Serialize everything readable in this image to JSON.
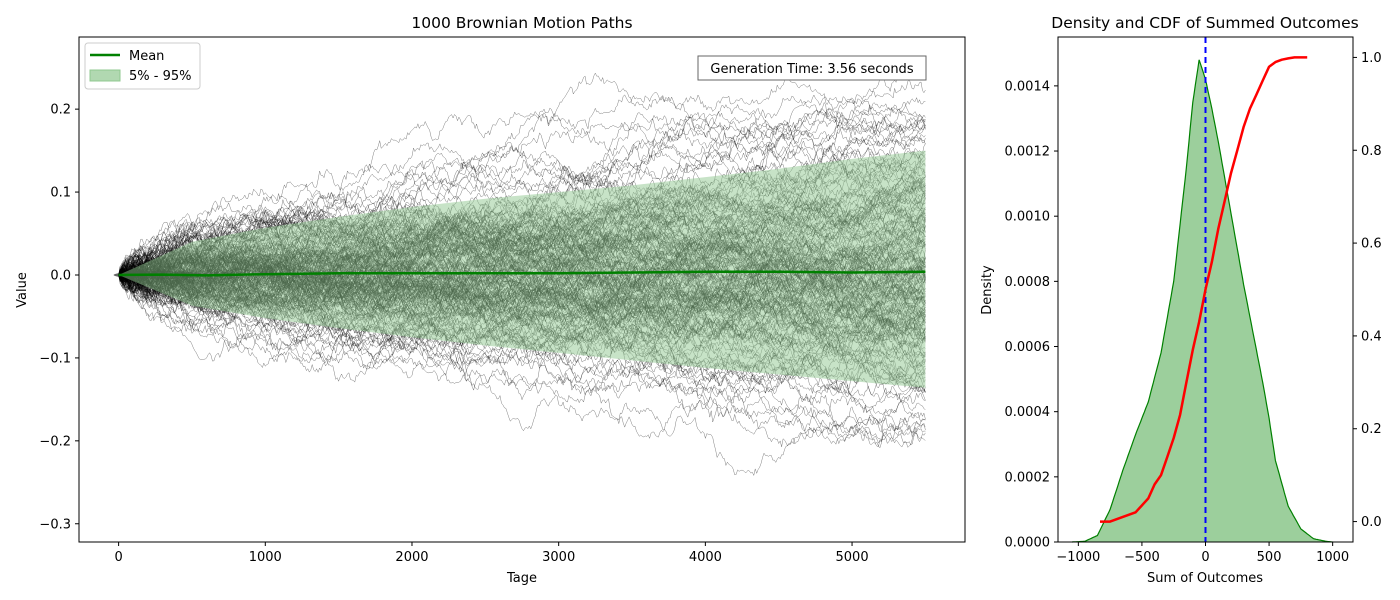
{
  "chart_data": [
    {
      "type": "line",
      "title": "1000 Brownian Motion Paths",
      "xlabel": "Tage",
      "ylabel": "Value",
      "xlim": [
        -270,
        5770
      ],
      "ylim": [
        -0.322,
        0.287
      ],
      "xticks": [
        0,
        1000,
        2000,
        3000,
        4000,
        5000
      ],
      "xtick_labels": [
        "0",
        "1000",
        "2000",
        "3000",
        "4000",
        "5000"
      ],
      "yticks": [
        -0.3,
        -0.2,
        -0.1,
        0.0,
        0.1,
        0.2
      ],
      "ytick_labels": [
        "−0.3",
        "−0.2",
        "−0.1",
        "0.0",
        "0.1",
        "0.2"
      ],
      "n_paths": 1000,
      "n_steps": 5500,
      "path_color": "#000000",
      "legend_position": "upper-left",
      "legend": [
        {
          "label": "Mean",
          "color": "#008000",
          "kind": "line"
        },
        {
          "label": "5% - 95%",
          "color": "#90c890",
          "kind": "patch"
        }
      ],
      "annotation": "Generation Time: 3.56 seconds",
      "series": [
        {
          "name": "Mean",
          "color": "#008000",
          "x": [
            0,
            300,
            600,
            1000,
            1500,
            2000,
            2500,
            3000,
            3500,
            4000,
            4500,
            5000,
            5500
          ],
          "y": [
            0.0,
            0.0005,
            -0.0005,
            0.001,
            0.002,
            0.002,
            0.002,
            0.002,
            0.003,
            0.004,
            0.004,
            0.003,
            0.004
          ]
        },
        {
          "name": "5% - 95%",
          "color": "#90c890",
          "x": [
            0,
            500,
            1000,
            1500,
            2000,
            2500,
            3000,
            3500,
            4000,
            4500,
            5000,
            5500
          ],
          "upper": [
            0.0,
            0.04,
            0.057,
            0.07,
            0.082,
            0.092,
            0.1,
            0.108,
            0.118,
            0.128,
            0.14,
            0.15
          ],
          "lower": [
            0.0,
            -0.037,
            -0.052,
            -0.064,
            -0.075,
            -0.085,
            -0.094,
            -0.103,
            -0.112,
            -0.12,
            -0.128,
            -0.136
          ]
        }
      ]
    },
    {
      "type": "area",
      "title": "Density and CDF of Summed Outcomes",
      "xlabel": "Sum of Outcomes",
      "ylabel": "Density",
      "xlim": [
        -1160,
        1160
      ],
      "ylim": [
        0,
        0.00155
      ],
      "y2lim": [
        -0.044,
        1.044
      ],
      "xticks": [
        -1000,
        -500,
        0,
        500,
        1000
      ],
      "xtick_labels": [
        "−1000",
        "−500",
        "0",
        "500",
        "1000"
      ],
      "yticks": [
        0,
        0.0002,
        0.0004,
        0.0006,
        0.0008,
        0.001,
        0.0012,
        0.0014
      ],
      "ytick_labels": [
        "0.0000",
        "0.0002",
        "0.0004",
        "0.0006",
        "0.0008",
        "0.0010",
        "0.0012",
        "0.0014"
      ],
      "y2ticks": [
        0,
        0.2,
        0.4,
        0.6,
        0.8,
        1.0
      ],
      "y2tick_labels": [
        "0.0",
        "0.2",
        "0.4",
        "0.6",
        "0.8",
        "1.0"
      ],
      "vline_x": 0,
      "series": [
        {
          "name": "Density",
          "color": "#008000",
          "fill": "#9ccf9c",
          "x": [
            -1050,
            -950,
            -850,
            -750,
            -650,
            -550,
            -450,
            -350,
            -250,
            -150,
            -100,
            -50,
            0,
            50,
            100,
            150,
            200,
            300,
            400,
            450,
            500,
            550,
            650,
            750,
            850,
            950,
            1000
          ],
          "y": [
            0.0,
            2e-06,
            2e-05,
            0.0001,
            0.00022,
            0.00033,
            0.00043,
            0.00058,
            0.0008,
            0.00115,
            0.00135,
            0.00148,
            0.00142,
            0.00133,
            0.00123,
            0.00112,
            0.00101,
            0.00079,
            0.00059,
            0.00049,
            0.00038,
            0.00025,
            0.00011,
            4e-05,
            1e-05,
            2e-06,
            0.0
          ]
        },
        {
          "name": "CDF",
          "color": "#ff0000",
          "x": [
            -830,
            -750,
            -650,
            -550,
            -450,
            -400,
            -350,
            -300,
            -250,
            -200,
            -150,
            -100,
            -50,
            0,
            50,
            100,
            150,
            200,
            250,
            300,
            350,
            400,
            450,
            500,
            550,
            600,
            650,
            700,
            800
          ],
          "y": [
            0.0,
            0.0,
            0.01,
            0.02,
            0.05,
            0.08,
            0.1,
            0.14,
            0.18,
            0.23,
            0.3,
            0.37,
            0.43,
            0.5,
            0.56,
            0.63,
            0.69,
            0.75,
            0.8,
            0.85,
            0.89,
            0.92,
            0.95,
            0.98,
            0.99,
            0.995,
            0.998,
            1.0,
            1.0
          ]
        }
      ]
    }
  ]
}
